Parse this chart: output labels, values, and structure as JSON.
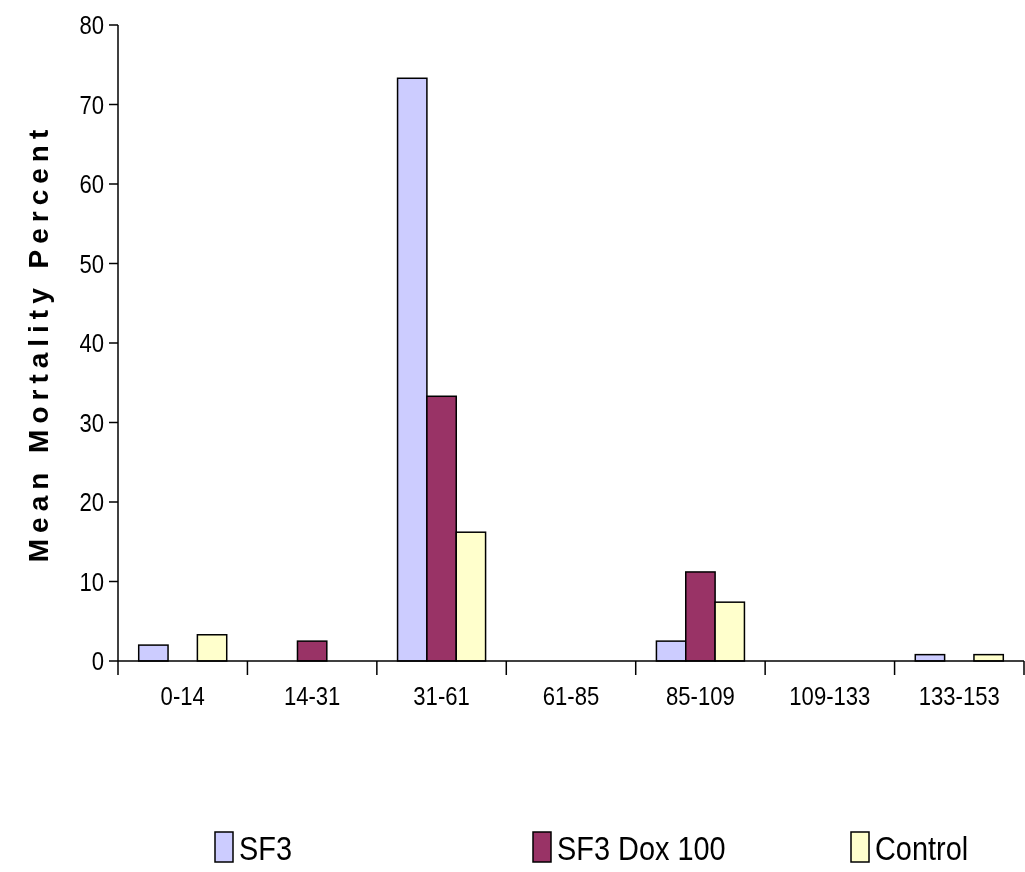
{
  "chart_data": {
    "type": "bar",
    "ylabel": "Mean Mortality Percent",
    "categories": [
      "0-14",
      "14-31",
      "31-61",
      "61-85",
      "85-109",
      "109-133",
      "133-153"
    ],
    "series": [
      {
        "name": "SF3",
        "color": "#ccccff",
        "values": [
          2,
          0,
          73.3,
          0,
          2.5,
          0,
          0.8
        ]
      },
      {
        "name": "SF3 Dox 100",
        "color": "#993366",
        "values": [
          0,
          2.5,
          33.3,
          0,
          11.2,
          0,
          0
        ]
      },
      {
        "name": "Control",
        "color": "#ffffcc",
        "values": [
          3.3,
          0,
          16.2,
          0,
          7.4,
          0,
          0.8
        ]
      }
    ],
    "ylim": [
      0,
      80
    ],
    "yticks": [
      0,
      10,
      20,
      30,
      40,
      50,
      60,
      70,
      80
    ],
    "grid": false,
    "legend": "bottom"
  }
}
